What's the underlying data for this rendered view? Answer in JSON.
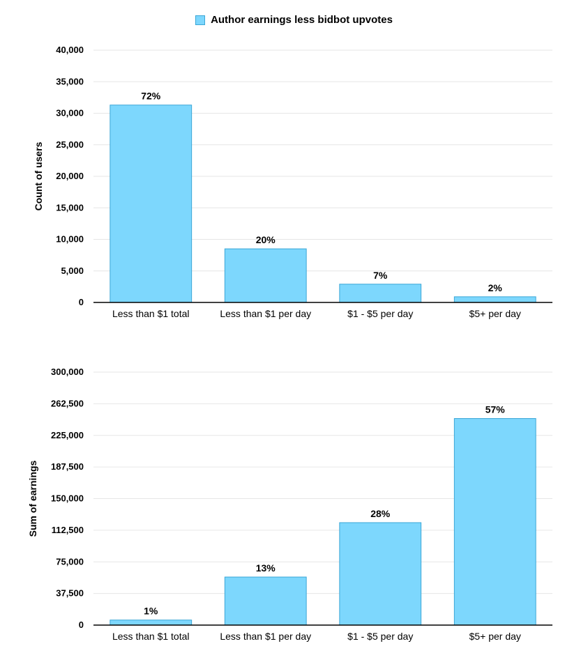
{
  "legend": {
    "label": "Author earnings less bidbot upvotes",
    "color": "#7dd7fd"
  },
  "chart_data": [
    {
      "type": "bar",
      "ylabel": "Count of users",
      "xlabel": "",
      "categories": [
        "Less than $1 total",
        "Less than $1 per day",
        "$1 - $5 per day",
        "$5+ per day"
      ],
      "series": [
        {
          "name": "Author earnings less bidbot upvotes",
          "values": [
            31300,
            8500,
            2900,
            900
          ]
        }
      ],
      "data_labels": [
        "72%",
        "20%",
        "7%",
        "2%"
      ],
      "ylim": [
        0,
        40000
      ],
      "yticks": [
        "0",
        "5,000",
        "10,000",
        "15,000",
        "20,000",
        "25,000",
        "30,000",
        "35,000",
        "40,000"
      ],
      "grid": true
    },
    {
      "type": "bar",
      "ylabel": "Sum of earnings",
      "xlabel": "",
      "categories": [
        "Less than $1 total",
        "Less than $1 per day",
        "$1 - $5 per day",
        "$5+ per day"
      ],
      "series": [
        {
          "name": "Author earnings less bidbot upvotes",
          "values": [
            6000,
            57000,
            121500,
            245000
          ]
        }
      ],
      "data_labels": [
        "1%",
        "13%",
        "28%",
        "57%"
      ],
      "ylim": [
        0,
        300000
      ],
      "yticks": [
        "0",
        "37,500",
        "75,000",
        "112,500",
        "150,000",
        "187,500",
        "225,000",
        "262,500",
        "300,000"
      ],
      "grid": true
    }
  ]
}
